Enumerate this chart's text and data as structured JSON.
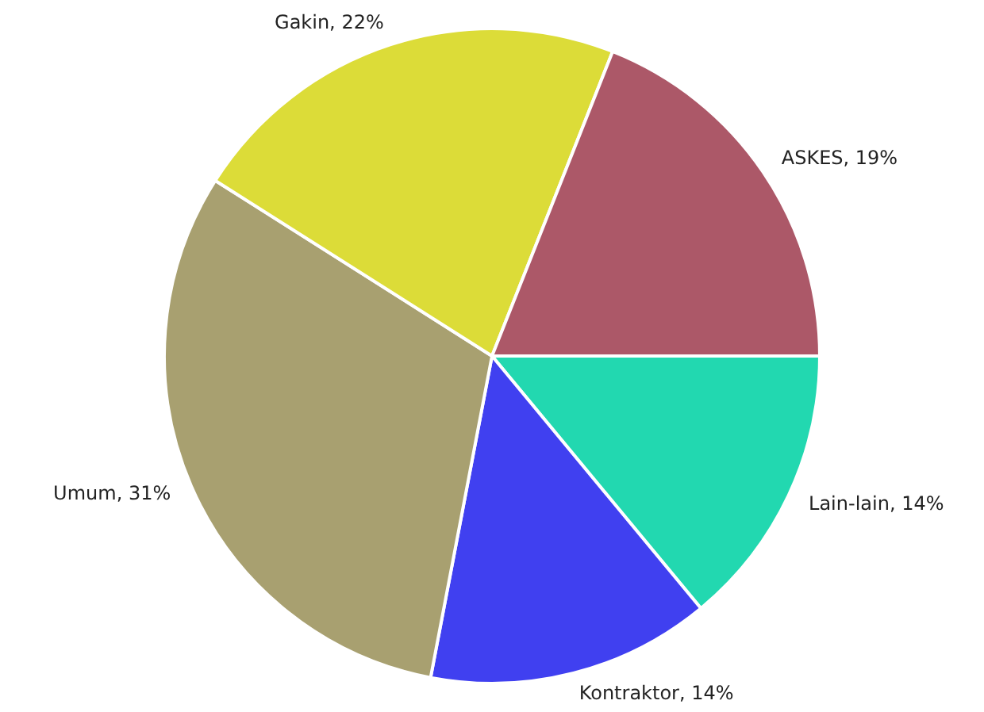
{
  "chart_data": {
    "type": "pie",
    "categories": [
      "Lain-lain",
      "Kontraktor",
      "Umum",
      "Gakin",
      "ASKES"
    ],
    "values": [
      14,
      14,
      31,
      22,
      19
    ],
    "value_labels": [
      "14%",
      "14%",
      "31%",
      "22%",
      "19%"
    ],
    "colors": [
      "#22d8b0",
      "#4040f0",
      "#a8a070",
      "#dcdc38",
      "#ac5868"
    ],
    "legend": false
  }
}
